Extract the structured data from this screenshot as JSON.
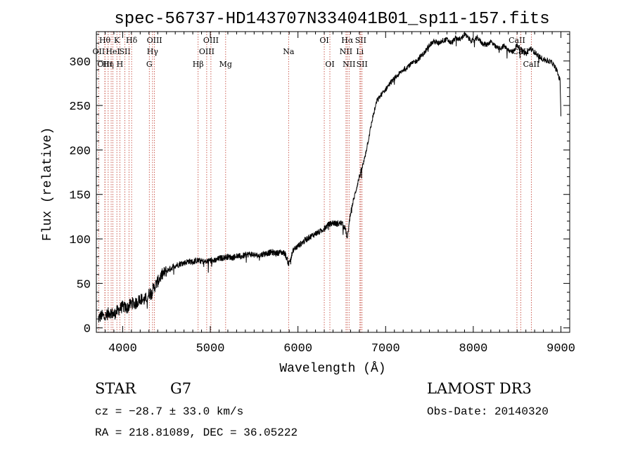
{
  "chart_data": {
    "type": "line",
    "title": "spec-56737-HD143707N334041B01_sp11-157.fits",
    "xlabel": "Wavelength (Å)",
    "ylabel": "Flux (relative)",
    "xlim": [
      3700,
      9100
    ],
    "ylim": [
      -5,
      333
    ],
    "xticks": [
      4000,
      5000,
      6000,
      7000,
      8000,
      9000
    ],
    "yticks": [
      0,
      50,
      100,
      150,
      200,
      250,
      300
    ],
    "grid": false,
    "series": [
      {
        "name": "spectrum",
        "x": [
          3720,
          3760,
          3800,
          3850,
          3900,
          3950,
          4000,
          4050,
          4100,
          4150,
          4200,
          4250,
          4300,
          4350,
          4400,
          4450,
          4500,
          4550,
          4600,
          4650,
          4700,
          4750,
          4800,
          4850,
          4900,
          4950,
          5000,
          5050,
          5100,
          5150,
          5200,
          5250,
          5300,
          5350,
          5400,
          5450,
          5500,
          5550,
          5600,
          5650,
          5700,
          5750,
          5800,
          5850,
          5895,
          5950,
          6000,
          6050,
          6100,
          6150,
          6200,
          6250,
          6300,
          6350,
          6400,
          6450,
          6500,
          6540,
          6563,
          6580,
          6600,
          6650,
          6700,
          6750,
          6800,
          6850,
          6900,
          6950,
          7000,
          7050,
          7100,
          7150,
          7200,
          7250,
          7300,
          7350,
          7400,
          7450,
          7500,
          7550,
          7600,
          7650,
          7700,
          7750,
          7800,
          7850,
          7900,
          7950,
          8000,
          8050,
          8100,
          8150,
          8200,
          8250,
          8300,
          8350,
          8400,
          8450,
          8500,
          8550,
          8600,
          8650,
          8700,
          8750,
          8800,
          8850,
          8900,
          8950,
          8990,
          9000
        ],
        "y": [
          10,
          14,
          12,
          18,
          15,
          20,
          24,
          22,
          28,
          27,
          33,
          31,
          38,
          44,
          52,
          60,
          64,
          67,
          70,
          72,
          73,
          75,
          74,
          76,
          75,
          74,
          76,
          75,
          78,
          79,
          80,
          79,
          81,
          80,
          82,
          83,
          82,
          81,
          83,
          84,
          85,
          84,
          85,
          84,
          72,
          88,
          92,
          96,
          100,
          103,
          106,
          108,
          112,
          116,
          118,
          117,
          118,
          112,
          100,
          114,
          130,
          150,
          170,
          186,
          210,
          235,
          255,
          262,
          268,
          275,
          280,
          285,
          290,
          294,
          297,
          300,
          305,
          310,
          318,
          322,
          320,
          323,
          324,
          320,
          326,
          324,
          330,
          325,
          322,
          326,
          320,
          318,
          322,
          316,
          314,
          317,
          312,
          310,
          318,
          312,
          308,
          314,
          310,
          305,
          302,
          300,
          298,
          290,
          278,
          240
        ]
      }
    ],
    "lines": [
      {
        "wl": 3727,
        "label": "OII",
        "row": 2
      },
      {
        "wl": 3797,
        "label": "Hθ",
        "row": 1
      },
      {
        "wl": 3799,
        "label": "OIII",
        "row": 3
      },
      {
        "wl": 3835,
        "label": "Hη",
        "row": 3
      },
      {
        "wl": 3869,
        "label": "",
        "row": 0
      },
      {
        "wl": 3889,
        "label": "HeI",
        "row": 2
      },
      {
        "wl": 3934,
        "label": "K",
        "row": 1
      },
      {
        "wl": 3968,
        "label": "H",
        "row": 3
      },
      {
        "wl": 4026,
        "label": "SII",
        "row": 2
      },
      {
        "wl": 4072,
        "label": "",
        "row": 0
      },
      {
        "wl": 4102,
        "label": "Hδ",
        "row": 1
      },
      {
        "wl": 4304,
        "label": "G",
        "row": 3
      },
      {
        "wl": 4341,
        "label": "Hγ",
        "row": 2
      },
      {
        "wl": 4363,
        "label": "OIII",
        "row": 1
      },
      {
        "wl": 4861,
        "label": "Hβ",
        "row": 3
      },
      {
        "wl": 4959,
        "label": "OIII",
        "row": 2
      },
      {
        "wl": 5007,
        "label": "OIII",
        "row": 1
      },
      {
        "wl": 5175,
        "label": "Mg",
        "row": 3
      },
      {
        "wl": 5893,
        "label": "Na",
        "row": 2
      },
      {
        "wl": 6300,
        "label": "OI",
        "row": 1
      },
      {
        "wl": 6364,
        "label": "OI",
        "row": 3
      },
      {
        "wl": 6548,
        "label": "NII",
        "row": 2
      },
      {
        "wl": 6563,
        "label": "Hα",
        "row": 1
      },
      {
        "wl": 6583,
        "label": "NII",
        "row": 3
      },
      {
        "wl": 6707,
        "label": "Li",
        "row": 2
      },
      {
        "wl": 6716,
        "label": "SII",
        "row": 1
      },
      {
        "wl": 6731,
        "label": "SII",
        "row": 3
      },
      {
        "wl": 8498,
        "label": "CaII",
        "row": 1
      },
      {
        "wl": 8542,
        "label": "CaII",
        "row": 2
      },
      {
        "wl": 8662,
        "label": "CaII",
        "row": 3
      }
    ]
  },
  "info": {
    "class_label": "STAR",
    "subclass": "G7",
    "survey": "LAMOST DR3",
    "cz": "cz = −28.7 ± 33.0 km/s",
    "obs_date": "Obs-Date: 20140320",
    "radec": "RA = 218.81089, DEC =  36.05222"
  }
}
